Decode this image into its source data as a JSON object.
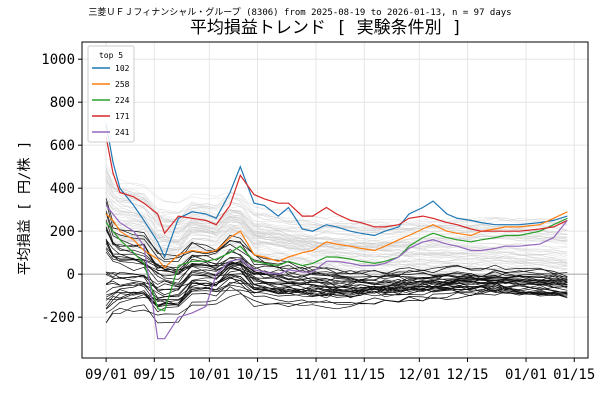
{
  "chart_data": {
    "type": "line",
    "subtitle": "三菱ＵＦＪフィナンシャル・グループ (8306) from 2025-08-19 to 2026-01-13, n = 97 days",
    "title": "平均損益トレンド [ 実験条件別 ]",
    "ylabel": "平均損益 [ 円/株 ]",
    "xlabel": "",
    "x_range": [
      "2025-08-25",
      "2026-01-19"
    ],
    "ylim": [
      -390,
      1080
    ],
    "y_ticks": [
      -200,
      0,
      200,
      400,
      600,
      800,
      1000
    ],
    "x_ticks": [
      {
        "label": "09/01",
        "date": "2025-09-01"
      },
      {
        "label": "09/15",
        "date": "2025-09-15"
      },
      {
        "label": "10/01",
        "date": "2025-10-01"
      },
      {
        "label": "10/15",
        "date": "2025-10-15"
      },
      {
        "label": "11/01",
        "date": "2025-11-01"
      },
      {
        "label": "11/15",
        "date": "2025-11-15"
      },
      {
        "label": "12/01",
        "date": "2025-12-01"
      },
      {
        "label": "12/15",
        "date": "2025-12-15"
      },
      {
        "label": "01/01",
        "date": "2026-01-01"
      },
      {
        "label": "01/15",
        "date": "2026-01-15"
      }
    ],
    "grid": true,
    "zero_line": true,
    "legend": {
      "title": "top 5",
      "placement": "top-left"
    },
    "dates": [
      "2025-09-01",
      "2025-09-03",
      "2025-09-05",
      "2025-09-09",
      "2025-09-12",
      "2025-09-16",
      "2025-09-18",
      "2025-09-22",
      "2025-09-26",
      "2025-09-30",
      "2025-10-03",
      "2025-10-07",
      "2025-10-10",
      "2025-10-14",
      "2025-10-17",
      "2025-10-21",
      "2025-10-24",
      "2025-10-28",
      "2025-10-31",
      "2025-11-04",
      "2025-11-07",
      "2025-11-11",
      "2025-11-14",
      "2025-11-18",
      "2025-11-21",
      "2025-11-25",
      "2025-11-28",
      "2025-12-02",
      "2025-12-05",
      "2025-12-09",
      "2025-12-12",
      "2025-12-16",
      "2025-12-19",
      "2025-12-23",
      "2025-12-26",
      "2025-12-30",
      "2026-01-05",
      "2026-01-09",
      "2026-01-13"
    ],
    "series": [
      {
        "name": "102",
        "color": "#1f77b4",
        "values": [
          700,
          520,
          400,
          320,
          250,
          150,
          80,
          260,
          290,
          280,
          260,
          380,
          500,
          330,
          320,
          270,
          310,
          210,
          200,
          230,
          220,
          200,
          190,
          180,
          200,
          220,
          280,
          310,
          340,
          280,
          260,
          250,
          240,
          230,
          230,
          230,
          240,
          250,
          270
        ]
      },
      {
        "name": "258",
        "color": "#ff7f0e",
        "values": [
          280,
          250,
          200,
          160,
          110,
          70,
          30,
          90,
          110,
          100,
          110,
          170,
          200,
          90,
          80,
          60,
          80,
          100,
          110,
          150,
          140,
          130,
          120,
          110,
          130,
          160,
          180,
          210,
          230,
          200,
          190,
          180,
          200,
          210,
          220,
          220,
          230,
          260,
          290
        ]
      },
      {
        "name": "224",
        "color": "#2ca02c",
        "values": [
          240,
          200,
          160,
          100,
          50,
          -160,
          -170,
          40,
          60,
          60,
          70,
          100,
          130,
          60,
          50,
          40,
          60,
          40,
          50,
          80,
          80,
          70,
          60,
          50,
          60,
          80,
          130,
          170,
          190,
          170,
          160,
          150,
          160,
          170,
          180,
          180,
          200,
          230,
          260
        ]
      },
      {
        "name": "171",
        "color": "#d62728",
        "values": [
          640,
          470,
          380,
          360,
          330,
          280,
          190,
          270,
          260,
          250,
          230,
          320,
          460,
          370,
          350,
          330,
          330,
          270,
          270,
          310,
          280,
          250,
          240,
          220,
          220,
          230,
          260,
          270,
          260,
          240,
          230,
          210,
          200,
          200,
          200,
          200,
          210,
          220,
          250
        ]
      },
      {
        "name": "241",
        "color": "#9467bd",
        "values": [
          320,
          280,
          240,
          200,
          130,
          -300,
          -300,
          -200,
          -180,
          -150,
          0,
          60,
          70,
          20,
          10,
          0,
          20,
          10,
          10,
          60,
          60,
          50,
          40,
          40,
          50,
          80,
          120,
          150,
          160,
          140,
          130,
          110,
          110,
          120,
          130,
          130,
          140,
          170,
          250
        ]
      }
    ]
  }
}
